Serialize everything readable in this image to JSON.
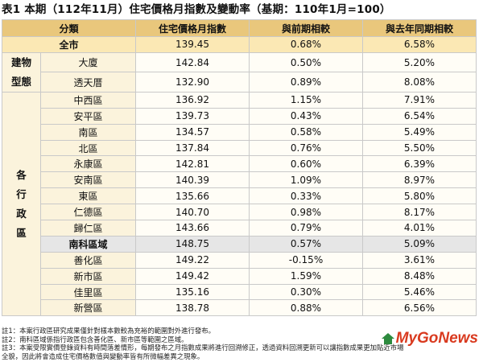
{
  "title": "表1 本期（112年11月）住宅價格月指數及變動率（基期：110年1月=100）",
  "headers": [
    "分類",
    "住宅價格月指數",
    "與前期相較",
    "與去年同期相較"
  ],
  "total": {
    "name": "全市",
    "index": "139.45",
    "mom": "0.68%",
    "yoy": "6.58%"
  },
  "building_type": {
    "label_line1": "建物",
    "label_line2": "型態",
    "rows": [
      {
        "name": "大廈",
        "index": "142.84",
        "mom": "0.50%",
        "yoy": "5.20%"
      },
      {
        "name": "透天厝",
        "index": "132.90",
        "mom": "0.89%",
        "yoy": "8.08%"
      }
    ]
  },
  "district": {
    "label_chars": [
      "各",
      "行",
      "政",
      "區"
    ],
    "rows": [
      {
        "name": "中西區",
        "index": "136.92",
        "mom": "1.15%",
        "yoy": "7.91%"
      },
      {
        "name": "安平區",
        "index": "139.73",
        "mom": "0.43%",
        "yoy": "6.54%"
      },
      {
        "name": "南區",
        "index": "134.57",
        "mom": "0.58%",
        "yoy": "5.49%"
      },
      {
        "name": "北區",
        "index": "137.84",
        "mom": "0.76%",
        "yoy": "5.50%"
      },
      {
        "name": "永康區",
        "index": "142.81",
        "mom": "0.60%",
        "yoy": "6.39%"
      },
      {
        "name": "安南區",
        "index": "140.39",
        "mom": "1.09%",
        "yoy": "8.97%"
      },
      {
        "name": "東區",
        "index": "135.66",
        "mom": "0.33%",
        "yoy": "5.80%"
      },
      {
        "name": "仁德區",
        "index": "140.70",
        "mom": "0.98%",
        "yoy": "8.17%"
      },
      {
        "name": "歸仁區",
        "index": "143.66",
        "mom": "0.79%",
        "yoy": "4.01%"
      },
      {
        "name": "南科區域",
        "index": "148.75",
        "mom": "0.57%",
        "yoy": "5.09%"
      },
      {
        "name": "善化區",
        "index": "149.22",
        "mom": "-0.15%",
        "yoy": "3.61%"
      },
      {
        "name": "新市區",
        "index": "149.42",
        "mom": "1.59%",
        "yoy": "8.48%"
      },
      {
        "name": "佳里區",
        "index": "135.16",
        "mom": "0.30%",
        "yoy": "5.46%"
      },
      {
        "name": "新營區",
        "index": "138.78",
        "mom": "0.88%",
        "yoy": "6.56%"
      }
    ]
  },
  "notes": [
    "註1：本案行政區研究成果僅針對樣本數較為充裕的範圍對外進行發布。",
    "註2：南科區域係指行政區包含善化區、新市區等範圍之區域。",
    "註3：本案受限實價登錄資料有時間落差情形，每期發布之月指數成果將進行回溯修正，透過資料回溯更新可以讓指數成果更加貼近市場",
    "全貌，因此將會造成住宅價格數值與變動率皆有所微幅差異之現象。"
  ],
  "logo_text": "MyGoNews",
  "colors": {
    "header": "#e9c77c",
    "total_row": "#fbe8b4",
    "highlight_row": "#e6e6e6",
    "logo": "#d93a1f"
  }
}
